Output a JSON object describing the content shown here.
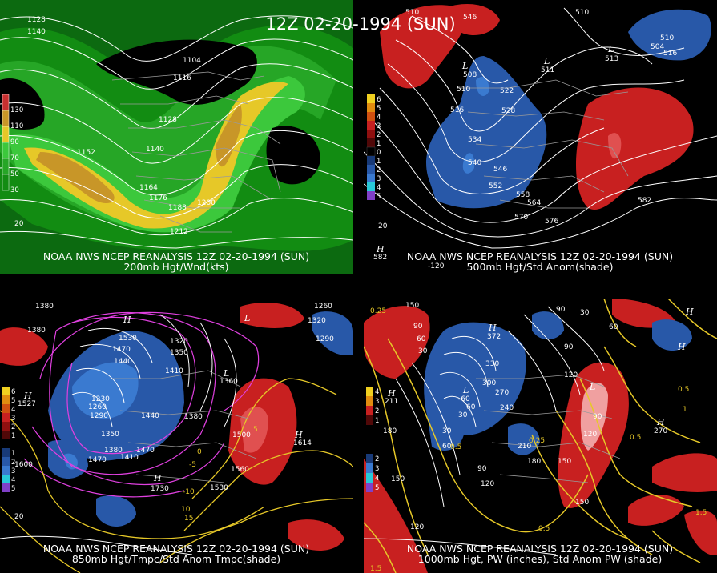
{
  "title": "12Z 02-20-1994 (SUN)",
  "panels": {
    "p200": {
      "caption1": "NOAA NWS NCEP REANALYSIS 12Z 02-20-1994 (SUN)",
      "caption2": "200mb Hgt/Wnd(kts)",
      "legend": [
        "130",
        "110",
        "90",
        "70",
        "50",
        "30"
      ],
      "legend_colors": [
        "#c83030",
        "#c89628",
        "#e6c828",
        "#3cc83c",
        "#26a626",
        "#128c12"
      ],
      "contours": [
        "1128",
        "1140",
        "1104",
        "1116",
        "1128",
        "1140",
        "1152",
        "1164",
        "1176",
        "1188",
        "1200",
        "1212"
      ],
      "extra_label": "20"
    },
    "p500": {
      "caption1": "NOAA NWS NCEP REANALYSIS 12Z 02-20-1994 (SUN)",
      "caption2": "500mb Hgt/Std Anom(shade)",
      "legend": [
        "6",
        "5",
        "4",
        "3",
        "2",
        "1",
        "0",
        "1",
        "2",
        "3",
        "4",
        "5"
      ],
      "legend_colors": [
        "#f0d020",
        "#e08c10",
        "#d05010",
        "#c82020",
        "#901010",
        "#500808",
        "#000000",
        "#183a78",
        "#2858a8",
        "#3a7ad0",
        "#28c8d8",
        "#8040c8"
      ],
      "contours": [
        "510",
        "546",
        "510",
        "510",
        "504",
        "516",
        "508",
        "510",
        "522",
        "516",
        "528",
        "534",
        "540",
        "546",
        "552",
        "558",
        "564",
        "570",
        "576",
        "582"
      ],
      "lows": [
        "L",
        "L",
        "L"
      ],
      "low_values": [
        "511",
        "513"
      ],
      "highs": [
        "H"
      ],
      "high_values": [
        "582"
      ],
      "extra_labels": [
        "20",
        "-120"
      ]
    },
    "p850": {
      "caption1": "NOAA NWS NCEP REANALYSIS 12Z 02-20-1994 (SUN)",
      "caption2": "850mb Hgt/Tmpc/Std Anom Tmpc(shade)",
      "legend": [
        "6",
        "5",
        "4",
        "3",
        "2",
        "1",
        "1",
        "2",
        "3",
        "4",
        "5"
      ],
      "legend_colors": [
        "#f0d020",
        "#e08c10",
        "#d05010",
        "#c82020",
        "#901010",
        "#500808",
        "#183a78",
        "#2858a8",
        "#3a7ad0",
        "#28c8d8",
        "#8040c8"
      ],
      "contours": [
        "1380",
        "1380",
        "1530",
        "1470",
        "1440",
        "1320",
        "1350",
        "1410",
        "1230",
        "1260",
        "1290",
        "1350",
        "1380",
        "1410",
        "1440",
        "1380",
        "1470",
        "1500",
        "1560",
        "1530",
        "1260",
        "1290",
        "1320",
        "1470",
        "1600"
      ],
      "highs": [
        "H",
        "H",
        "H",
        "H"
      ],
      "high_values": [
        "1527",
        "1614",
        "1730"
      ],
      "lows": [
        "L",
        "L"
      ],
      "low_values": [
        "1360"
      ],
      "temps": [
        "-5",
        "-10",
        "5",
        "10",
        "15",
        "0",
        "20"
      ]
    },
    "p1000": {
      "caption1": "NOAA NWS NCEP REANALYSIS 12Z 02-20-1994 (SUN)",
      "caption2": "1000mb Hgt, PW (inches), Std Anom PW (shade)",
      "legend": [
        "4",
        "3",
        "2",
        "1",
        "2",
        "3",
        "4",
        "5"
      ],
      "legend_colors": [
        "#f0d020",
        "#e08c10",
        "#c82020",
        "#500808",
        "#183a78",
        "#3a7ad0",
        "#28c8d8",
        "#8040c8"
      ],
      "contours": [
        "150",
        "90",
        "60",
        "30",
        "90",
        "120",
        "330",
        "300",
        "270",
        "240",
        "210",
        "180",
        "150",
        "120",
        "90",
        "60",
        "30",
        "30",
        "60",
        "90",
        "180",
        "150",
        "120",
        "60",
        "30",
        "150",
        "120",
        "90"
      ],
      "pw": [
        "0.25",
        "0.5",
        "0.5",
        "0.5",
        "0.25",
        "1",
        "1.5",
        "1.5",
        "0.5"
      ],
      "highs": [
        "H",
        "H",
        "H",
        "H",
        "H"
      ],
      "high_values": [
        "372",
        "211",
        "270"
      ],
      "lows": [
        "L",
        "L"
      ],
      "low_values": [
        "-60"
      ]
    }
  }
}
